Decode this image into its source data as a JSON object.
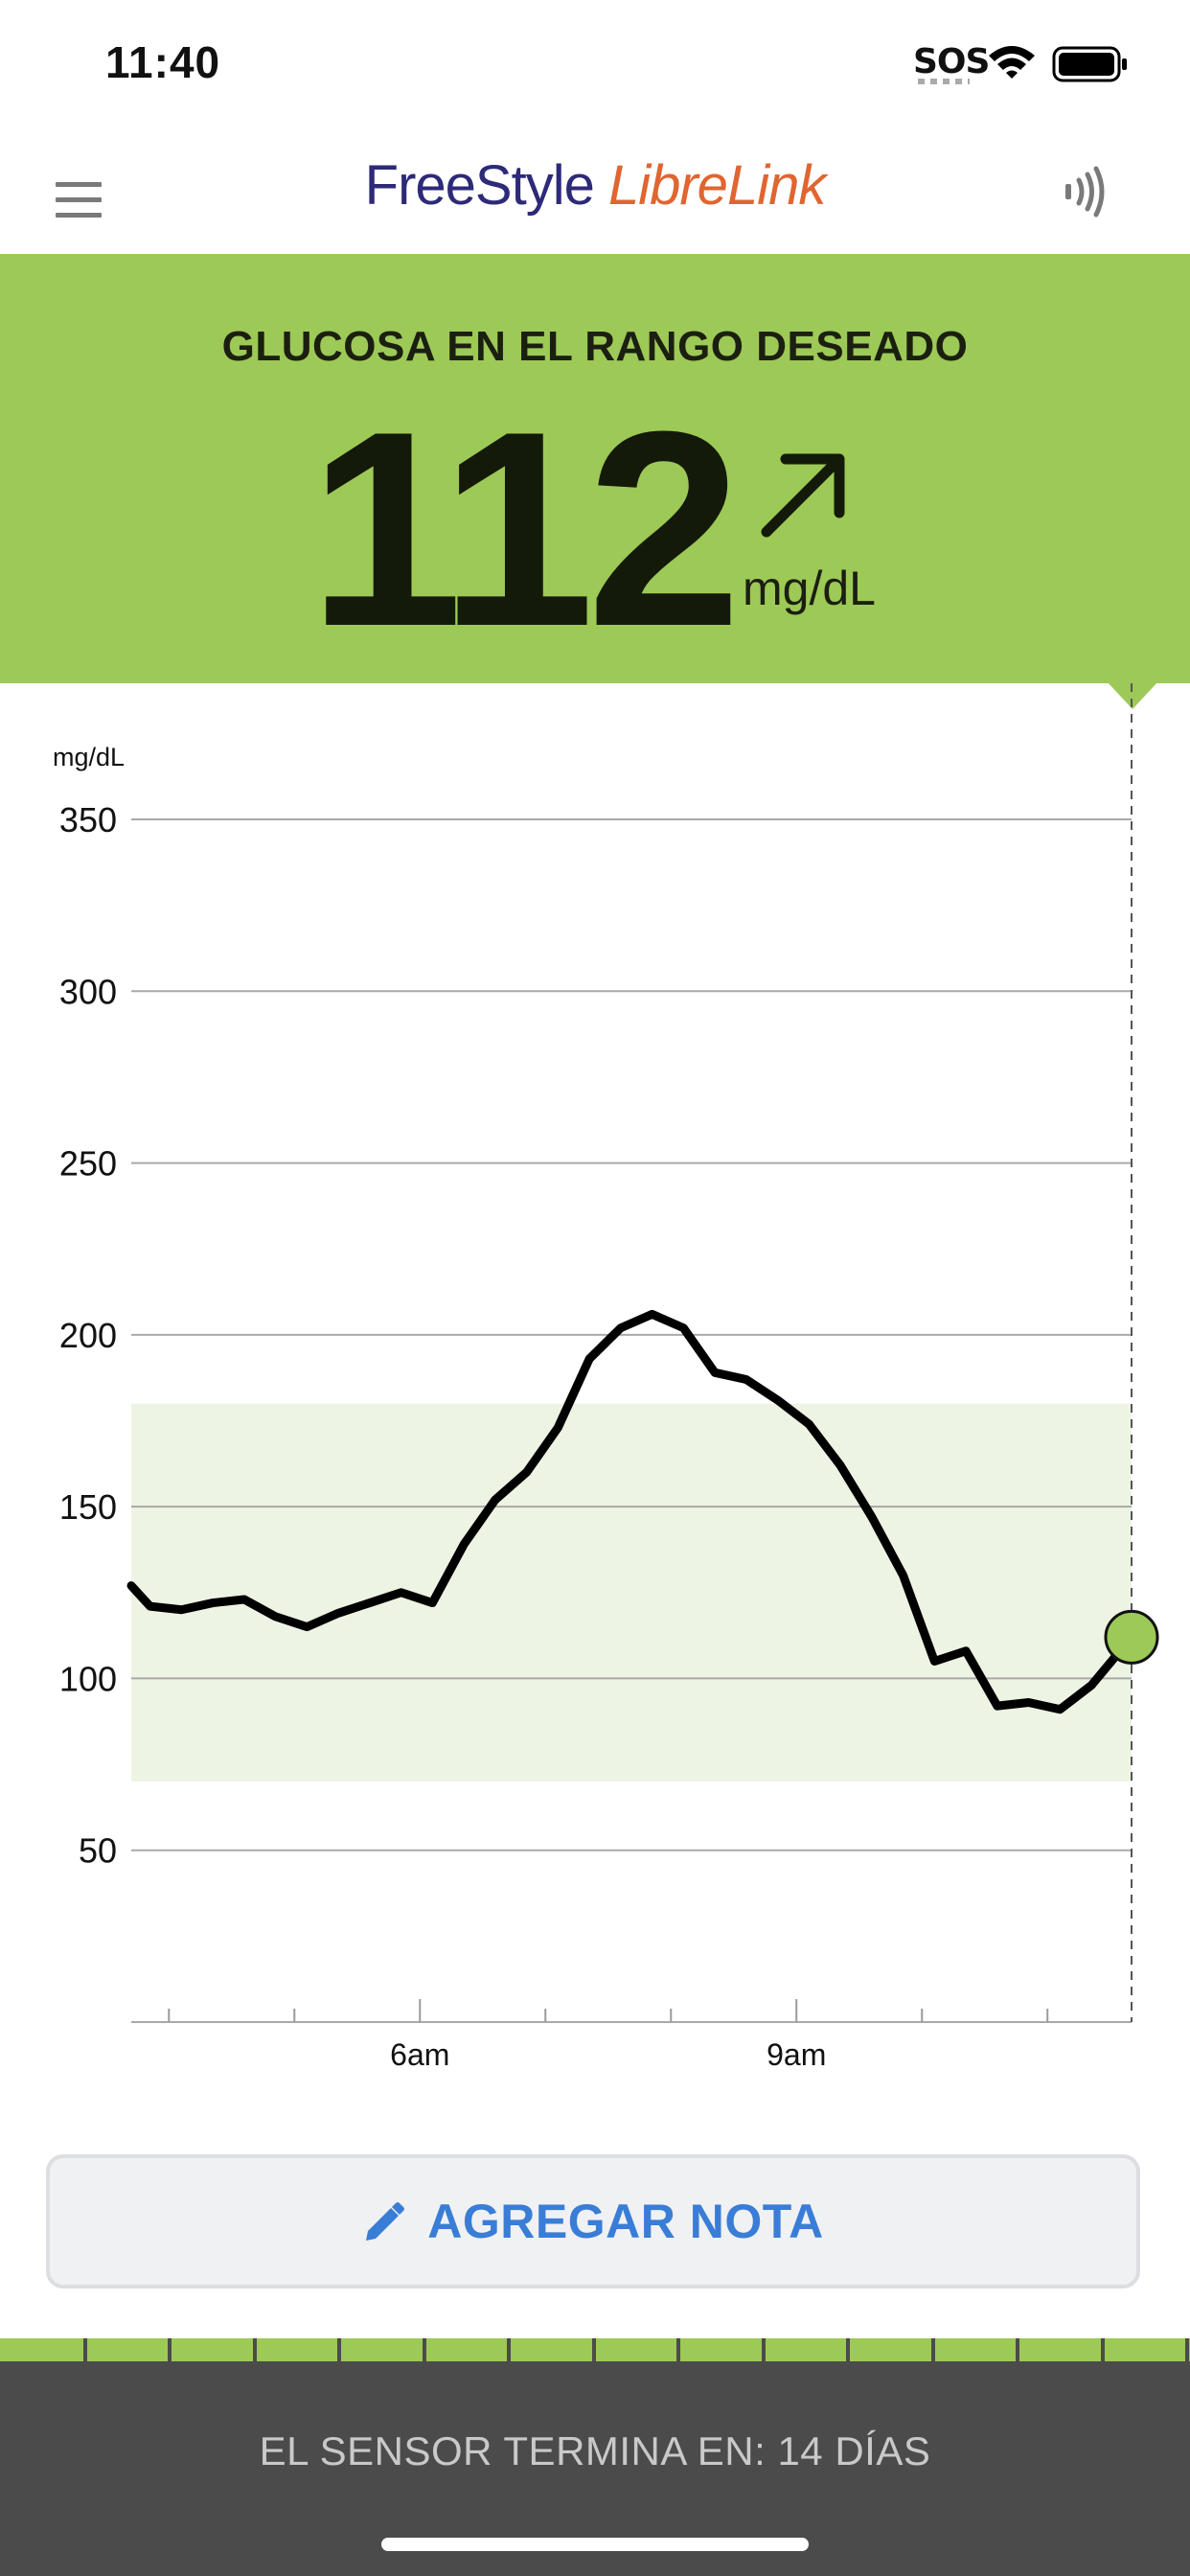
{
  "status_bar": {
    "time": "11:40",
    "sos": "SOS",
    "icons": [
      "wifi-icon",
      "battery-icon"
    ]
  },
  "header": {
    "brand_part1": "FreeStyle ",
    "brand_part2": "LibreLink",
    "menu_icon": "hamburger-menu-icon",
    "scan_icon": "scan-sensor-icon"
  },
  "glucose": {
    "status": "GLUCOSA EN EL RANGO DESEADO",
    "value": "112",
    "unit": "mg/dL",
    "trend": "rising",
    "trend_icon": "arrow-up-right-icon"
  },
  "colors": {
    "in_range_green": "#9dc957",
    "target_band": "#eef4e3",
    "accent_blue": "#3a7dd6",
    "footer_gray": "#4b4b4b"
  },
  "chart_data": {
    "type": "line",
    "ylabel": "mg/dL",
    "ylim": [
      0,
      350
    ],
    "yticks": [
      50,
      100,
      150,
      200,
      250,
      300,
      350
    ],
    "x_range_hours": [
      3.7,
      11.67
    ],
    "xticks": [
      {
        "label": "6am",
        "value": 6
      },
      {
        "label": "9am",
        "value": 9
      }
    ],
    "minor_xtick_hours": [
      4,
      5,
      6,
      7,
      8,
      9,
      10,
      11
    ],
    "target_range": [
      70,
      180
    ],
    "grid": true,
    "current_point": {
      "x": 11.67,
      "y": 112
    },
    "series": [
      {
        "x": [
          3.7,
          3.85,
          4.1,
          4.35,
          4.6,
          4.85,
          5.1,
          5.35,
          5.6,
          5.85,
          6.1,
          6.35,
          6.6,
          6.85,
          7.1,
          7.35,
          7.6,
          7.85,
          8.1,
          8.35,
          8.6,
          8.85,
          9.1,
          9.35,
          9.6,
          9.85,
          10.1,
          10.35,
          10.6,
          10.85,
          11.1,
          11.35,
          11.67
        ],
        "y": [
          127,
          121,
          120,
          122,
          123,
          118,
          115,
          119,
          122,
          125,
          122,
          139,
          152,
          160,
          173,
          193,
          202,
          206,
          202,
          189,
          187,
          181,
          174,
          162,
          147,
          130,
          105,
          108,
          92,
          93,
          91,
          98,
          112
        ]
      }
    ]
  },
  "note_button": {
    "label": "AGREGAR NOTA",
    "icon": "pencil-icon"
  },
  "sensor": {
    "text": "EL SENSOR TERMINA EN: 14 DÍAS"
  }
}
